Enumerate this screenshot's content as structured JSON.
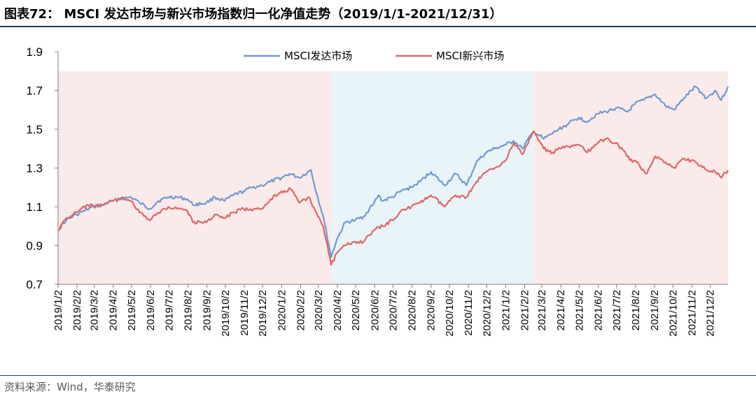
{
  "header": {
    "title": "图表72： MSCI 发达市场与新兴市场指数归一化净值走势（2019/1/1-2021/12/31）"
  },
  "footer": {
    "source": "资料来源：Wind，华泰研究"
  },
  "colors": {
    "developed": "#6f9ad3",
    "emerging": "#e06666",
    "band_pink": "#fbeaea",
    "band_blue": "#e8f4f8",
    "rule": "#1f3864"
  },
  "chart_data": {
    "type": "line",
    "title": "",
    "xlabel": "",
    "ylabel": "",
    "ylim": [
      0.7,
      1.9
    ],
    "yticks": [
      "0.7",
      "0.9",
      "1.1",
      "1.3",
      "1.5",
      "1.7",
      "1.9"
    ],
    "xticks": [
      "2019/1/2",
      "2019/2/2",
      "2019/3/2",
      "2019/4/2",
      "2019/5/2",
      "2019/6/2",
      "2019/7/2",
      "2019/8/2",
      "2019/9/2",
      "2019/10/2",
      "2019/11/2",
      "2019/12/2",
      "2020/1/2",
      "2020/2/2",
      "2020/3/2",
      "2020/4/2",
      "2020/5/2",
      "2020/6/2",
      "2020/7/2",
      "2020/8/2",
      "2020/9/2",
      "2020/10/2",
      "2020/11/2",
      "2020/12/2",
      "2021/1/2",
      "2021/2/2",
      "2021/3/2",
      "2021/4/2",
      "2021/5/2",
      "2021/6/2",
      "2021/7/2",
      "2021/8/2",
      "2021/9/2",
      "2021/10/2",
      "2021/11/2",
      "2021/12/2"
    ],
    "legend_position": "top-center",
    "grid": false,
    "shaded_periods": [
      {
        "from": "2019/1/2",
        "to": "2020/3/23",
        "color": "pink"
      },
      {
        "from": "2020/3/23",
        "to": "2021/2/17",
        "color": "blue"
      },
      {
        "from": "2021/2/17",
        "to": "2021/12/31",
        "color": "pink"
      }
    ],
    "series": [
      {
        "name": "MSCI发达市场",
        "color": "#6f9ad3",
        "points": [
          [
            "2019/1/2",
            0.98
          ],
          [
            "2019/1/15",
            1.03
          ],
          [
            "2019/2/1",
            1.06
          ],
          [
            "2019/2/15",
            1.08
          ],
          [
            "2019/3/1",
            1.1
          ],
          [
            "2019/3/15",
            1.11
          ],
          [
            "2019/4/1",
            1.13
          ],
          [
            "2019/4/15",
            1.14
          ],
          [
            "2019/5/1",
            1.15
          ],
          [
            "2019/5/15",
            1.12
          ],
          [
            "2019/6/1",
            1.09
          ],
          [
            "2019/6/15",
            1.13
          ],
          [
            "2019/7/1",
            1.15
          ],
          [
            "2019/7/15",
            1.15
          ],
          [
            "2019/8/1",
            1.14
          ],
          [
            "2019/8/10",
            1.11
          ],
          [
            "2019/9/1",
            1.12
          ],
          [
            "2019/9/15",
            1.15
          ],
          [
            "2019/10/1",
            1.13
          ],
          [
            "2019/10/15",
            1.16
          ],
          [
            "2019/11/1",
            1.18
          ],
          [
            "2019/11/15",
            1.2
          ],
          [
            "2019/12/1",
            1.21
          ],
          [
            "2019/12/15",
            1.23
          ],
          [
            "2020/1/2",
            1.25
          ],
          [
            "2020/1/15",
            1.27
          ],
          [
            "2020/1/31",
            1.25
          ],
          [
            "2020/2/19",
            1.29
          ],
          [
            "2020/2/28",
            1.17
          ],
          [
            "2020/3/10",
            1.05
          ],
          [
            "2020/3/23",
            0.84
          ],
          [
            "2020/4/1",
            0.93
          ],
          [
            "2020/4/15",
            1.02
          ],
          [
            "2020/5/1",
            1.03
          ],
          [
            "2020/5/15",
            1.05
          ],
          [
            "2020/6/1",
            1.12
          ],
          [
            "2020/6/8",
            1.16
          ],
          [
            "2020/6/15",
            1.13
          ],
          [
            "2020/7/1",
            1.15
          ],
          [
            "2020/7/15",
            1.18
          ],
          [
            "2020/8/1",
            1.2
          ],
          [
            "2020/8/15",
            1.23
          ],
          [
            "2020/9/2",
            1.28
          ],
          [
            "2020/9/24",
            1.21
          ],
          [
            "2020/10/12",
            1.27
          ],
          [
            "2020/10/30",
            1.21
          ],
          [
            "2020/11/15",
            1.33
          ],
          [
            "2020/12/1",
            1.38
          ],
          [
            "2020/12/15",
            1.4
          ],
          [
            "2021/1/2",
            1.42
          ],
          [
            "2021/1/15",
            1.44
          ],
          [
            "2021/1/29",
            1.4
          ],
          [
            "2021/2/17",
            1.49
          ],
          [
            "2021/3/5",
            1.45
          ],
          [
            "2021/3/20",
            1.48
          ],
          [
            "2021/4/15",
            1.53
          ],
          [
            "2021/5/1",
            1.56
          ],
          [
            "2021/5/15",
            1.54
          ],
          [
            "2021/6/1",
            1.58
          ],
          [
            "2021/6/15",
            1.59
          ],
          [
            "2021/7/1",
            1.61
          ],
          [
            "2021/7/20",
            1.59
          ],
          [
            "2021/8/1",
            1.63
          ],
          [
            "2021/8/15",
            1.65
          ],
          [
            "2021/9/3",
            1.68
          ],
          [
            "2021/9/20",
            1.62
          ],
          [
            "2021/10/4",
            1.6
          ],
          [
            "2021/10/20",
            1.66
          ],
          [
            "2021/11/8",
            1.72
          ],
          [
            "2021/11/26",
            1.66
          ],
          [
            "2021/12/10",
            1.7
          ],
          [
            "2021/12/20",
            1.65
          ],
          [
            "2021/12/31",
            1.72
          ]
        ]
      },
      {
        "name": "MSCI新兴市场",
        "color": "#e06666",
        "points": [
          [
            "2019/1/2",
            0.98
          ],
          [
            "2019/1/15",
            1.04
          ],
          [
            "2019/2/1",
            1.07
          ],
          [
            "2019/2/20",
            1.11
          ],
          [
            "2019/3/1",
            1.1
          ],
          [
            "2019/3/15",
            1.11
          ],
          [
            "2019/4/1",
            1.13
          ],
          [
            "2019/4/17",
            1.15
          ],
          [
            "2019/5/1",
            1.13
          ],
          [
            "2019/5/15",
            1.07
          ],
          [
            "2019/6/1",
            1.03
          ],
          [
            "2019/6/15",
            1.07
          ],
          [
            "2019/7/1",
            1.1
          ],
          [
            "2019/7/20",
            1.09
          ],
          [
            "2019/8/1",
            1.08
          ],
          [
            "2019/8/10",
            1.02
          ],
          [
            "2019/9/1",
            1.02
          ],
          [
            "2019/9/15",
            1.06
          ],
          [
            "2019/10/1",
            1.04
          ],
          [
            "2019/10/15",
            1.07
          ],
          [
            "2019/11/1",
            1.09
          ],
          [
            "2019/11/15",
            1.08
          ],
          [
            "2019/12/1",
            1.09
          ],
          [
            "2019/12/15",
            1.14
          ],
          [
            "2020/1/2",
            1.18
          ],
          [
            "2020/1/17",
            1.19
          ],
          [
            "2020/1/31",
            1.12
          ],
          [
            "2020/2/15",
            1.15
          ],
          [
            "2020/2/28",
            1.07
          ],
          [
            "2020/3/10",
            1.0
          ],
          [
            "2020/3/23",
            0.8
          ],
          [
            "2020/4/1",
            0.86
          ],
          [
            "2020/4/15",
            0.9
          ],
          [
            "2020/5/1",
            0.92
          ],
          [
            "2020/5/15",
            0.92
          ],
          [
            "2020/6/1",
            0.98
          ],
          [
            "2020/6/15",
            1.0
          ],
          [
            "2020/7/1",
            1.03
          ],
          [
            "2020/7/15",
            1.08
          ],
          [
            "2020/8/1",
            1.1
          ],
          [
            "2020/8/15",
            1.12
          ],
          [
            "2020/9/2",
            1.16
          ],
          [
            "2020/9/24",
            1.1
          ],
          [
            "2020/10/12",
            1.16
          ],
          [
            "2020/10/30",
            1.15
          ],
          [
            "2020/11/15",
            1.23
          ],
          [
            "2020/12/1",
            1.28
          ],
          [
            "2020/12/15",
            1.3
          ],
          [
            "2021/1/2",
            1.34
          ],
          [
            "2021/1/15",
            1.43
          ],
          [
            "2021/1/29",
            1.37
          ],
          [
            "2021/2/17",
            1.49
          ],
          [
            "2021/3/5",
            1.4
          ],
          [
            "2021/3/20",
            1.38
          ],
          [
            "2021/4/1",
            1.4
          ],
          [
            "2021/4/15",
            1.41
          ],
          [
            "2021/5/1",
            1.42
          ],
          [
            "2021/5/15",
            1.38
          ],
          [
            "2021/6/1",
            1.43
          ],
          [
            "2021/6/15",
            1.45
          ],
          [
            "2021/7/1",
            1.43
          ],
          [
            "2021/7/28",
            1.33
          ],
          [
            "2021/8/1",
            1.34
          ],
          [
            "2021/8/19",
            1.27
          ],
          [
            "2021/9/3",
            1.36
          ],
          [
            "2021/9/20",
            1.33
          ],
          [
            "2021/10/4",
            1.3
          ],
          [
            "2021/10/20",
            1.35
          ],
          [
            "2021/11/8",
            1.33
          ],
          [
            "2021/11/26",
            1.29
          ],
          [
            "2021/12/10",
            1.28
          ],
          [
            "2021/12/20",
            1.25
          ],
          [
            "2021/12/31",
            1.29
          ]
        ]
      }
    ]
  }
}
